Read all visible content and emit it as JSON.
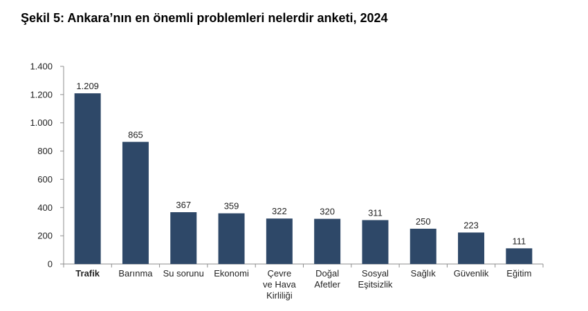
{
  "title": "Şekil 5: Ankara’nın en önemli problemleri nelerdir anketi, 2024",
  "colors": {
    "bar": "#2e4868",
    "axis": "#8c8c8c"
  },
  "chart_data": {
    "type": "bar",
    "title": "",
    "xlabel": "",
    "ylabel": "",
    "ylim": [
      0,
      1400
    ],
    "yticks": [
      0,
      200,
      400,
      600,
      800,
      1000,
      1200,
      1400
    ],
    "ytick_labels": [
      "0",
      "200",
      "400",
      "600",
      "800",
      "1.000",
      "1.200",
      "1.400"
    ],
    "grid": false,
    "categories": [
      [
        "Trafik"
      ],
      [
        "Barınma"
      ],
      [
        "Su sorunu"
      ],
      [
        "Ekonomi"
      ],
      [
        "Çevre",
        "ve Hava",
        "Kirliliği"
      ],
      [
        "Doğal",
        "Afetler"
      ],
      [
        "Sosyal",
        "Eşitsizlik"
      ],
      [
        "Sağlık"
      ],
      [
        "Güvenlik"
      ],
      [
        "Eğitim"
      ]
    ],
    "bold_category_index": 0,
    "values": [
      1209,
      865,
      367,
      359,
      322,
      320,
      311,
      250,
      223,
      111
    ],
    "value_labels": [
      "1.209",
      "865",
      "367",
      "359",
      "322",
      "320",
      "311",
      "250",
      "223",
      "111"
    ]
  }
}
